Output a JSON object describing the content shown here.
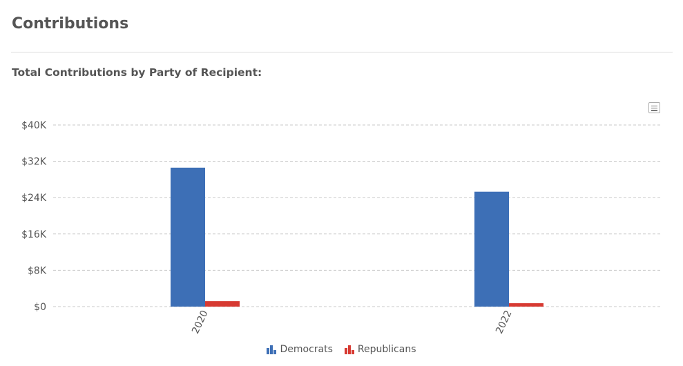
{
  "page": {
    "title": "Contributions",
    "chart_heading": "Total Contributions by Party of Recipient:"
  },
  "icons": {
    "menu": "hamburger-menu-icon",
    "legend": "bar-chart-icon"
  },
  "chart_data": {
    "type": "bar",
    "categories": [
      "2020",
      "2022"
    ],
    "series": [
      {
        "name": "Democrats",
        "color": "#3d6fb6",
        "values": [
          30600,
          25300
        ]
      },
      {
        "name": "Republicans",
        "color": "#d73a32",
        "values": [
          1200,
          750
        ]
      }
    ],
    "ylim": [
      0,
      40000
    ],
    "y_ticks": [
      0,
      8000,
      16000,
      24000,
      32000,
      40000
    ],
    "y_tick_labels": [
      "$0",
      "$8K",
      "$16K",
      "$24K",
      "$32K",
      "$40K"
    ],
    "grid": true,
    "legend_position": "bottom-center",
    "xlabel": "",
    "ylabel": ""
  }
}
